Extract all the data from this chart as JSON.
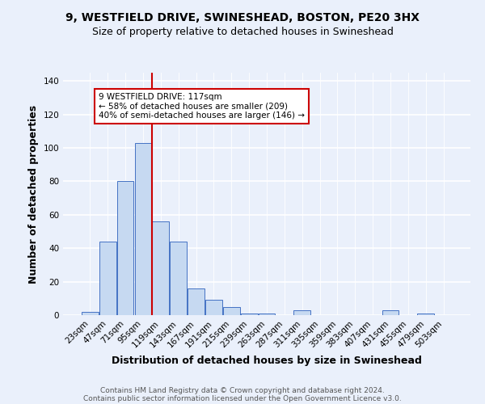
{
  "title": "9, WESTFIELD DRIVE, SWINESHEAD, BOSTON, PE20 3HX",
  "subtitle": "Size of property relative to detached houses in Swineshead",
  "xlabel": "Distribution of detached houses by size in Swineshead",
  "ylabel": "Number of detached properties",
  "bin_labels": [
    "23sqm",
    "47sqm",
    "71sqm",
    "95sqm",
    "119sqm",
    "143sqm",
    "167sqm",
    "191sqm",
    "215sqm",
    "239sqm",
    "263sqm",
    "287sqm",
    "311sqm",
    "335sqm",
    "359sqm",
    "383sqm",
    "407sqm",
    "431sqm",
    "455sqm",
    "479sqm",
    "503sqm"
  ],
  "bar_values": [
    2,
    44,
    80,
    103,
    56,
    44,
    16,
    9,
    5,
    1,
    1,
    0,
    3,
    0,
    0,
    0,
    0,
    3,
    0,
    1,
    0
  ],
  "bar_color": "#c6d9f1",
  "bar_edge_color": "#4472c4",
  "vline_color": "#cc0000",
  "annotation_line1": "9 WESTFIELD DRIVE: 117sqm",
  "annotation_line2": "← 58% of detached houses are smaller (209)",
  "annotation_line3": "40% of semi-detached houses are larger (146) →",
  "annotation_box_color": "white",
  "annotation_box_edge": "#cc0000",
  "ylim": [
    0,
    145
  ],
  "yticks": [
    0,
    20,
    40,
    60,
    80,
    100,
    120,
    140
  ],
  "bg_color": "#eaf0fb",
  "footer_line1": "Contains HM Land Registry data © Crown copyright and database right 2024.",
  "footer_line2": "Contains public sector information licensed under the Open Government Licence v3.0.",
  "title_fontsize": 10,
  "subtitle_fontsize": 9,
  "axis_label_fontsize": 9,
  "tick_fontsize": 7.5,
  "footer_fontsize": 6.5
}
